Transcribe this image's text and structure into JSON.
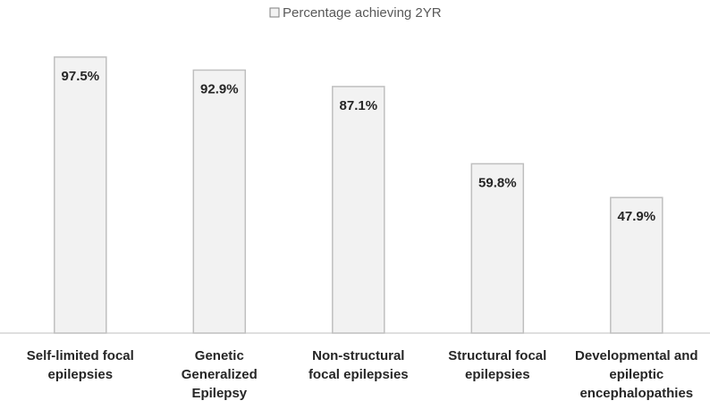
{
  "chart_data": {
    "type": "bar",
    "legend": "Percentage achieving 2YR",
    "legend_position": "top",
    "categories": [
      [
        "Self-limited focal",
        "epilepsies"
      ],
      [
        "Genetic",
        "Generalized",
        "Epilepsy"
      ],
      [
        "Non-structural",
        "focal epilepsies"
      ],
      [
        "Structural focal",
        "epilepsies"
      ],
      [
        "Developmental and",
        "epileptic",
        "encephalopathies"
      ]
    ],
    "values": [
      97.5,
      92.9,
      87.1,
      59.8,
      47.9
    ],
    "value_labels": [
      "97.5%",
      "92.9%",
      "87.1%",
      "59.8%",
      "47.9%"
    ],
    "ylim": [
      0,
      100
    ],
    "grid": false,
    "colors": {
      "bar_fill": "#f2f2f2",
      "bar_stroke": "#bfbfbf",
      "axis": "#bfbfbf"
    }
  }
}
